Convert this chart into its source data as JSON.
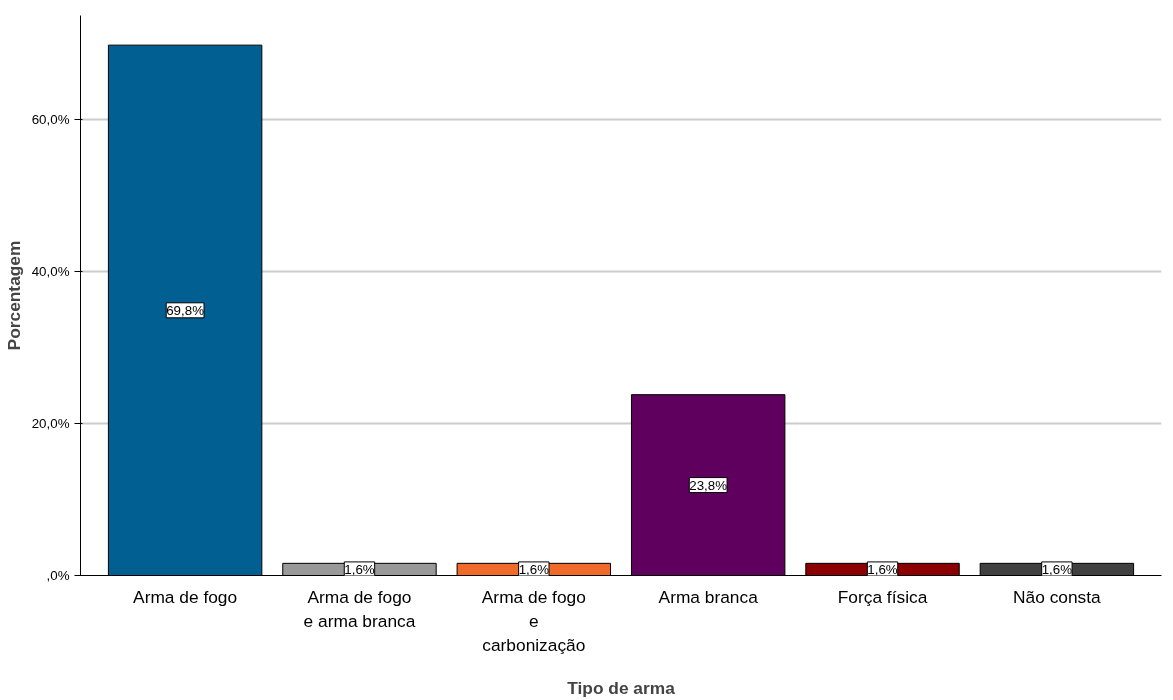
{
  "chart_data": {
    "type": "bar",
    "xlabel": "Tipo de arma",
    "ylabel": "Porcentagem",
    "categories": [
      "Arma de fogo",
      "Arma de fogo\ne arma branca",
      "Arma de fogo\ne\ncarbonização",
      "Arma branca",
      "Força física",
      "Não consta"
    ],
    "values": [
      69.8,
      1.6,
      1.6,
      23.8,
      1.6,
      1.6
    ],
    "colors": [
      "#025f91",
      "#999999",
      "#f06a2a",
      "#5f005f",
      "#8b0000",
      "#404040"
    ],
    "value_labels": [
      "69,8%",
      "1,6%",
      "1,6%",
      "23,8%",
      "1,6%",
      "1,6%"
    ],
    "ylim": [
      0,
      73.7
    ],
    "yticks": [
      {
        "value": 0,
        "label": ",0%"
      },
      {
        "value": 20,
        "label": "20,0%"
      },
      {
        "value": 40,
        "label": "40,0%"
      },
      {
        "value": 60,
        "label": "60,0%"
      }
    ],
    "grid": "y"
  }
}
